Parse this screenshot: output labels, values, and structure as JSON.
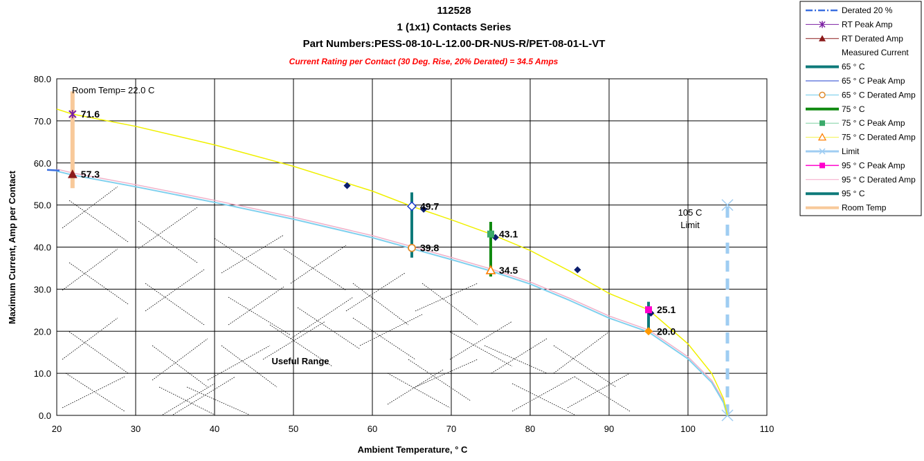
{
  "title_lines": [
    "112528",
    "1 (1x1) Contacts Series",
    "Part Numbers:PESS-08-10-L-12.00-DR-NUS-R/PET-08-01-L-VT"
  ],
  "subtitle": "Current Rating per Contact (30 Deg. Rise, 20% Derated)  = 34.5 Amps",
  "colors": {
    "derated": "#3a6fe0",
    "rt_peak": "#7b1fa2",
    "rt_derated": "#8b1a1a",
    "measured": "#0a1d6e",
    "c65": "#0e7a7a",
    "c65_peak": "#1f3fcf",
    "c65_derated": "#e08a2a",
    "c65_derated_line": "#69c8ea",
    "c75": "#118a11",
    "c75_peak": "#3aaa6a",
    "c75_derated": "#ff7f00",
    "c75_derated_line": "#f2f24a",
    "limit": "#9fcdf2",
    "c95_peak": "#ff00cc",
    "c95_derated": "#ff9900",
    "room_temp": "#f8c99a",
    "peak_curve": "#f0f000",
    "derated_curve": "#7fd0ee",
    "derated_curve2": "#f0b0c8"
  },
  "chart_data": {
    "type": "line",
    "xlabel": "Ambient Temperature,  ° C",
    "ylabel": "Maximum Current, Amp per Contact",
    "xlim": [
      20,
      110
    ],
    "ylim": [
      0,
      80
    ],
    "x_ticks": [
      20,
      30,
      40,
      50,
      60,
      70,
      80,
      90,
      100,
      110
    ],
    "y_ticks": [
      "0.0",
      "10.0",
      "20.0",
      "30.0",
      "40.0",
      "50.0",
      "60.0",
      "70.0",
      "80.0"
    ],
    "grid": true,
    "legend_position": "top-right, outside plot",
    "legend": [
      "Derated 20 %",
      "RT Peak Amp",
      "RT Derated Amp",
      "Measured Current",
      "65 ° C",
      "65  ° C Peak Amp",
      "65  ° C Derated Amp",
      "75  ° C",
      "75  ° C Peak Amp",
      "75  ° C Derated Amp",
      "Limit",
      "95  ° C Peak Amp",
      "95  ° C Derated Amp",
      "95  ° C",
      "Room Temp"
    ],
    "measured_current": [
      [
        56.8,
        54.6
      ],
      [
        66.5,
        49.0
      ],
      [
        75.6,
        42.3
      ],
      [
        86.0,
        34.6
      ],
      [
        95.3,
        24.3
      ]
    ],
    "peak_curve_points": [
      [
        20,
        72.8
      ],
      [
        22,
        71.6
      ],
      [
        30,
        68.7
      ],
      [
        40,
        64.3
      ],
      [
        50,
        59.2
      ],
      [
        60,
        53.3
      ],
      [
        65,
        49.7
      ],
      [
        70,
        46.5
      ],
      [
        75,
        43.1
      ],
      [
        80,
        39.2
      ],
      [
        85,
        34.3
      ],
      [
        90,
        29.0
      ],
      [
        95,
        25.1
      ],
      [
        100,
        17.0
      ],
      [
        103,
        10.0
      ],
      [
        104.5,
        4.0
      ],
      [
        105,
        0.0
      ]
    ],
    "derated_curve_points": [
      [
        20,
        58.2
      ],
      [
        22,
        57.3
      ],
      [
        30,
        54.5
      ],
      [
        40,
        50.8
      ],
      [
        50,
        46.8
      ],
      [
        60,
        42.4
      ],
      [
        65,
        39.8
      ],
      [
        70,
        37.2
      ],
      [
        75,
        34.5
      ],
      [
        80,
        31.4
      ],
      [
        85,
        27.5
      ],
      [
        90,
        23.3
      ],
      [
        95,
        20.0
      ],
      [
        100,
        13.6
      ],
      [
        103,
        8.0
      ],
      [
        104.5,
        3.2
      ],
      [
        105,
        0.0
      ]
    ],
    "rt_peak": [
      22,
      71.6
    ],
    "rt_derated": [
      22,
      57.3
    ],
    "c65_peak": [
      65,
      49.7
    ],
    "c65_derated": [
      65,
      39.8
    ],
    "c75_peak": [
      75,
      43.1
    ],
    "c75_derated": [
      75,
      34.5
    ],
    "c95_peak": [
      95,
      25.1
    ],
    "c95_derated": [
      95,
      20.0
    ],
    "room_temp_bar": {
      "x": 22,
      "y": [
        54,
        77
      ]
    },
    "c65_bar": {
      "x": 65,
      "y": [
        37.5,
        53
      ]
    },
    "c75_bar": {
      "x": 75,
      "y": [
        33,
        46
      ]
    },
    "c95_bar": {
      "x": 95,
      "y": [
        19.5,
        27
      ]
    },
    "limit_line": {
      "x": 105,
      "y": [
        0,
        50
      ]
    },
    "data_labels": [
      {
        "x": 22,
        "y": 71.6,
        "text": "71.6"
      },
      {
        "x": 22,
        "y": 57.3,
        "text": "57.3"
      },
      {
        "x": 65,
        "y": 49.7,
        "text": "49.7"
      },
      {
        "x": 65,
        "y": 39.8,
        "text": "39.8"
      },
      {
        "x": 75,
        "y": 43.1,
        "text": "43.1"
      },
      {
        "x": 75,
        "y": 34.5,
        "text": "34.5"
      },
      {
        "x": 95,
        "y": 25.1,
        "text": "25.1"
      },
      {
        "x": 95,
        "y": 20.0,
        "text": "20.0"
      }
    ],
    "annotations": {
      "room_temp": "Room Temp= 22.0 C",
      "limit_line1": "105 C",
      "limit_line2": "Limit",
      "useful_range": "Useful Range"
    }
  }
}
